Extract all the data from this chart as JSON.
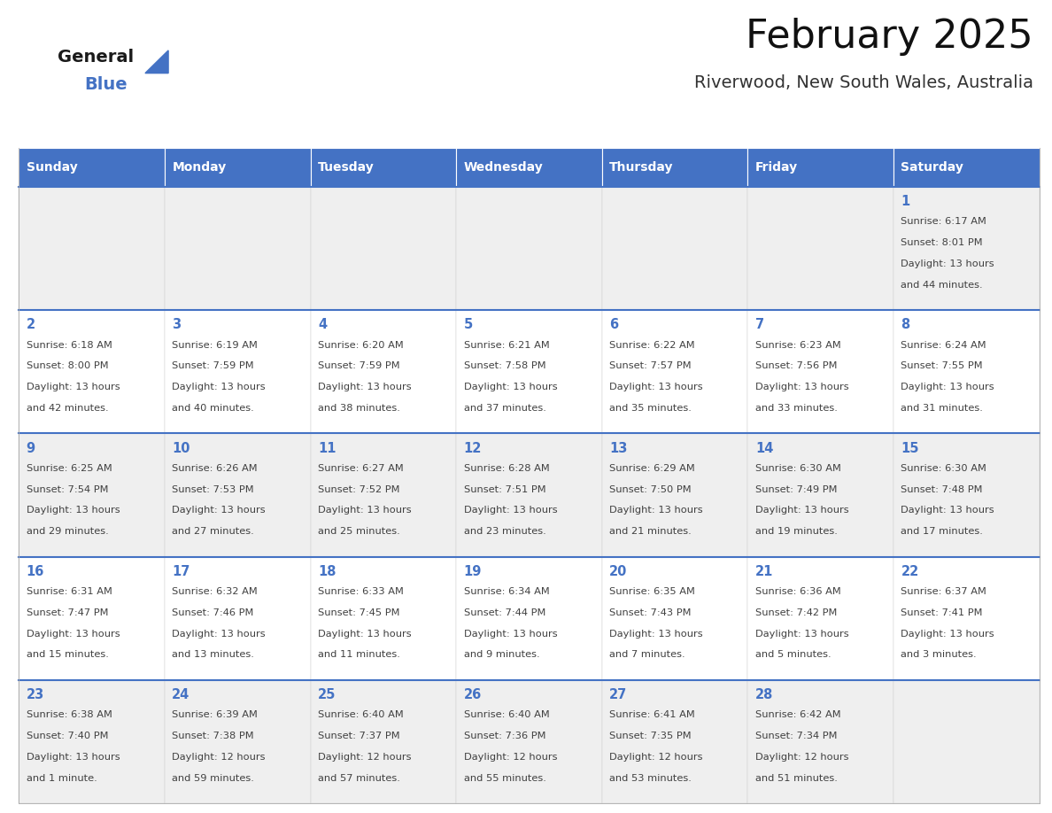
{
  "title": "February 2025",
  "subtitle": "Riverwood, New South Wales, Australia",
  "header_color": "#4472C4",
  "header_text_color": "#FFFFFF",
  "day_names": [
    "Sunday",
    "Monday",
    "Tuesday",
    "Wednesday",
    "Thursday",
    "Friday",
    "Saturday"
  ],
  "background_color": "#FFFFFF",
  "cell_bg_light": "#EFEFEF",
  "cell_bg_white": "#FFFFFF",
  "border_color": "#4472C4",
  "date_color": "#4472C4",
  "text_color": "#404040",
  "logo_general_color": "#1a1a1a",
  "logo_blue_color": "#4472C4",
  "logo_triangle_color": "#4472C4",
  "days": [
    {
      "day": 1,
      "col": 6,
      "row": 0,
      "sunrise": "6:17 AM",
      "sunset": "8:01 PM",
      "daylight": "13 hours",
      "daylight2": "and 44 minutes."
    },
    {
      "day": 2,
      "col": 0,
      "row": 1,
      "sunrise": "6:18 AM",
      "sunset": "8:00 PM",
      "daylight": "13 hours",
      "daylight2": "and 42 minutes."
    },
    {
      "day": 3,
      "col": 1,
      "row": 1,
      "sunrise": "6:19 AM",
      "sunset": "7:59 PM",
      "daylight": "13 hours",
      "daylight2": "and 40 minutes."
    },
    {
      "day": 4,
      "col": 2,
      "row": 1,
      "sunrise": "6:20 AM",
      "sunset": "7:59 PM",
      "daylight": "13 hours",
      "daylight2": "and 38 minutes."
    },
    {
      "day": 5,
      "col": 3,
      "row": 1,
      "sunrise": "6:21 AM",
      "sunset": "7:58 PM",
      "daylight": "13 hours",
      "daylight2": "and 37 minutes."
    },
    {
      "day": 6,
      "col": 4,
      "row": 1,
      "sunrise": "6:22 AM",
      "sunset": "7:57 PM",
      "daylight": "13 hours",
      "daylight2": "and 35 minutes."
    },
    {
      "day": 7,
      "col": 5,
      "row": 1,
      "sunrise": "6:23 AM",
      "sunset": "7:56 PM",
      "daylight": "13 hours",
      "daylight2": "and 33 minutes."
    },
    {
      "day": 8,
      "col": 6,
      "row": 1,
      "sunrise": "6:24 AM",
      "sunset": "7:55 PM",
      "daylight": "13 hours",
      "daylight2": "and 31 minutes."
    },
    {
      "day": 9,
      "col": 0,
      "row": 2,
      "sunrise": "6:25 AM",
      "sunset": "7:54 PM",
      "daylight": "13 hours",
      "daylight2": "and 29 minutes."
    },
    {
      "day": 10,
      "col": 1,
      "row": 2,
      "sunrise": "6:26 AM",
      "sunset": "7:53 PM",
      "daylight": "13 hours",
      "daylight2": "and 27 minutes."
    },
    {
      "day": 11,
      "col": 2,
      "row": 2,
      "sunrise": "6:27 AM",
      "sunset": "7:52 PM",
      "daylight": "13 hours",
      "daylight2": "and 25 minutes."
    },
    {
      "day": 12,
      "col": 3,
      "row": 2,
      "sunrise": "6:28 AM",
      "sunset": "7:51 PM",
      "daylight": "13 hours",
      "daylight2": "and 23 minutes."
    },
    {
      "day": 13,
      "col": 4,
      "row": 2,
      "sunrise": "6:29 AM",
      "sunset": "7:50 PM",
      "daylight": "13 hours",
      "daylight2": "and 21 minutes."
    },
    {
      "day": 14,
      "col": 5,
      "row": 2,
      "sunrise": "6:30 AM",
      "sunset": "7:49 PM",
      "daylight": "13 hours",
      "daylight2": "and 19 minutes."
    },
    {
      "day": 15,
      "col": 6,
      "row": 2,
      "sunrise": "6:30 AM",
      "sunset": "7:48 PM",
      "daylight": "13 hours",
      "daylight2": "and 17 minutes."
    },
    {
      "day": 16,
      "col": 0,
      "row": 3,
      "sunrise": "6:31 AM",
      "sunset": "7:47 PM",
      "daylight": "13 hours",
      "daylight2": "and 15 minutes."
    },
    {
      "day": 17,
      "col": 1,
      "row": 3,
      "sunrise": "6:32 AM",
      "sunset": "7:46 PM",
      "daylight": "13 hours",
      "daylight2": "and 13 minutes."
    },
    {
      "day": 18,
      "col": 2,
      "row": 3,
      "sunrise": "6:33 AM",
      "sunset": "7:45 PM",
      "daylight": "13 hours",
      "daylight2": "and 11 minutes."
    },
    {
      "day": 19,
      "col": 3,
      "row": 3,
      "sunrise": "6:34 AM",
      "sunset": "7:44 PM",
      "daylight": "13 hours",
      "daylight2": "and 9 minutes."
    },
    {
      "day": 20,
      "col": 4,
      "row": 3,
      "sunrise": "6:35 AM",
      "sunset": "7:43 PM",
      "daylight": "13 hours",
      "daylight2": "and 7 minutes."
    },
    {
      "day": 21,
      "col": 5,
      "row": 3,
      "sunrise": "6:36 AM",
      "sunset": "7:42 PM",
      "daylight": "13 hours",
      "daylight2": "and 5 minutes."
    },
    {
      "day": 22,
      "col": 6,
      "row": 3,
      "sunrise": "6:37 AM",
      "sunset": "7:41 PM",
      "daylight": "13 hours",
      "daylight2": "and 3 minutes."
    },
    {
      "day": 23,
      "col": 0,
      "row": 4,
      "sunrise": "6:38 AM",
      "sunset": "7:40 PM",
      "daylight": "13 hours",
      "daylight2": "and 1 minute."
    },
    {
      "day": 24,
      "col": 1,
      "row": 4,
      "sunrise": "6:39 AM",
      "sunset": "7:38 PM",
      "daylight": "12 hours",
      "daylight2": "and 59 minutes."
    },
    {
      "day": 25,
      "col": 2,
      "row": 4,
      "sunrise": "6:40 AM",
      "sunset": "7:37 PM",
      "daylight": "12 hours",
      "daylight2": "and 57 minutes."
    },
    {
      "day": 26,
      "col": 3,
      "row": 4,
      "sunrise": "6:40 AM",
      "sunset": "7:36 PM",
      "daylight": "12 hours",
      "daylight2": "and 55 minutes."
    },
    {
      "day": 27,
      "col": 4,
      "row": 4,
      "sunrise": "6:41 AM",
      "sunset": "7:35 PM",
      "daylight": "12 hours",
      "daylight2": "and 53 minutes."
    },
    {
      "day": 28,
      "col": 5,
      "row": 4,
      "sunrise": "6:42 AM",
      "sunset": "7:34 PM",
      "daylight": "12 hours",
      "daylight2": "and 51 minutes."
    }
  ]
}
